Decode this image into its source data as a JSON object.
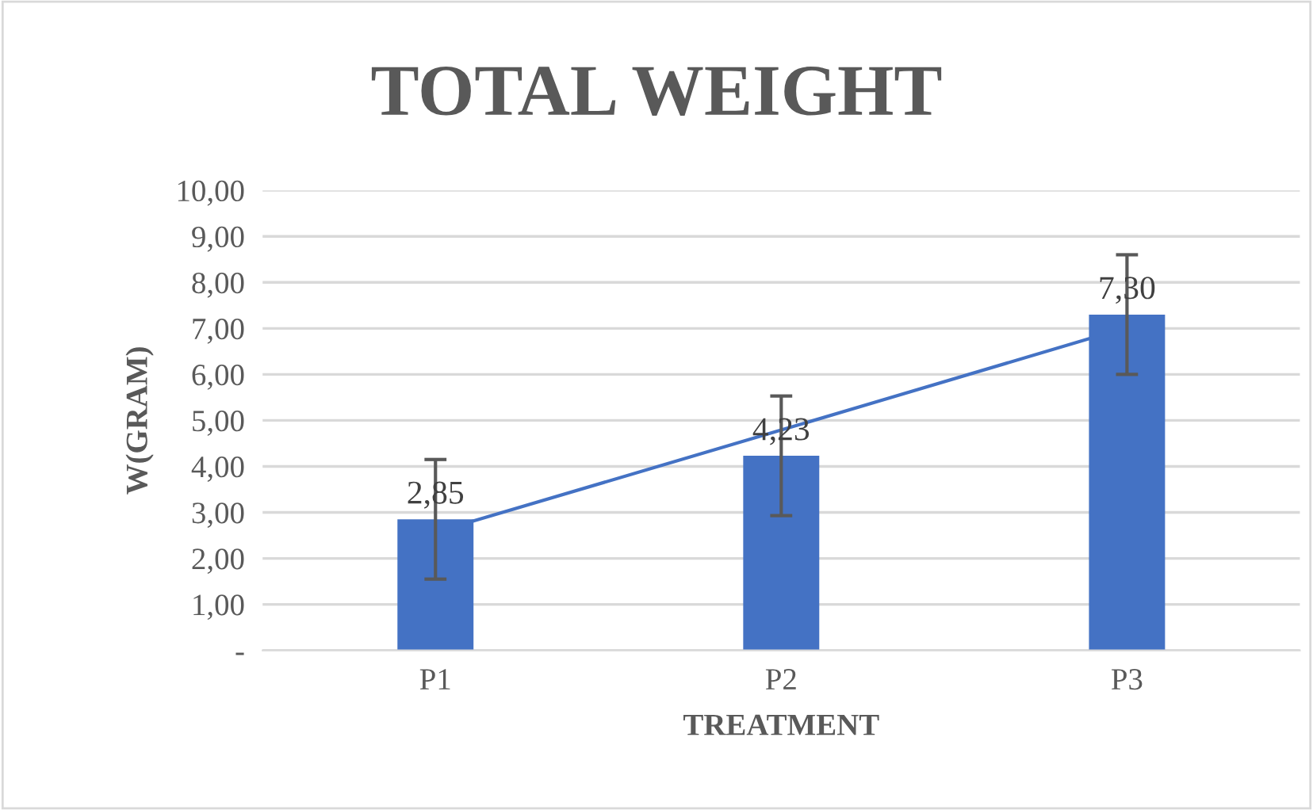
{
  "chart_data": {
    "type": "bar",
    "title": "TOTAL WEIGHT",
    "xlabel": "TREATMENT",
    "ylabel": "W(GRAM)",
    "categories": [
      "P1",
      "P2",
      "P3"
    ],
    "series": [
      {
        "color": "#4472c4",
        "values": [
          2.85,
          4.23,
          7.3
        ],
        "errors": [
          1.3,
          1.3,
          1.3
        ],
        "value_labels": [
          "2,85",
          "4,23",
          "7,30"
        ]
      },
      {
        "type": "line",
        "color": "#4472c4",
        "values": [
          2.57,
          4.79,
          7.02
        ]
      }
    ],
    "ylim": [
      0,
      10
    ],
    "yticks": [
      {
        "value": 0,
        "label": "-"
      },
      {
        "value": 1,
        "label": "1,00"
      },
      {
        "value": 2,
        "label": "2,00"
      },
      {
        "value": 3,
        "label": "3,00"
      },
      {
        "value": 4,
        "label": "4,00"
      },
      {
        "value": 5,
        "label": "5,00"
      },
      {
        "value": 6,
        "label": "6,00"
      },
      {
        "value": 7,
        "label": "7,00"
      },
      {
        "value": 8,
        "label": "8,00"
      },
      {
        "value": 9,
        "label": "9,00"
      },
      {
        "value": 10,
        "label": "10,00"
      }
    ],
    "grid": "y",
    "legend": false
  }
}
